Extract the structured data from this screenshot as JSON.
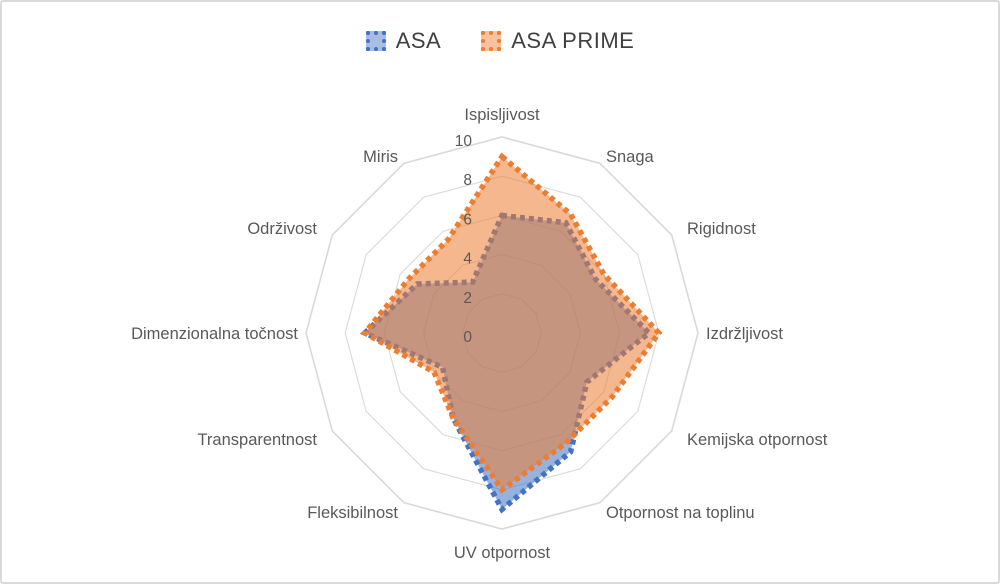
{
  "chart_data": {
    "type": "radar",
    "title": "",
    "categories": [
      "Ispisljivost",
      "Snaga",
      "Rigidnost",
      "Izdržljivost",
      "Kemijska otpornost",
      "Otpornost na toplinu",
      "UV otpornost",
      "Fleksibilnost",
      "Transparentnost",
      "Dimenzionalna točnost",
      "Održivost",
      "Miris"
    ],
    "series": [
      {
        "name": "ASA",
        "color": "#4472C4",
        "values": [
          6,
          6.5,
          5.5,
          7.5,
          5,
          7,
          9,
          5,
          3.5,
          7,
          5,
          3
        ]
      },
      {
        "name": "ASA PRIME",
        "color": "#ED7D31",
        "values": [
          9,
          7,
          6,
          8,
          6.5,
          6.5,
          8,
          5,
          4,
          7,
          5.5,
          5.5
        ]
      }
    ],
    "axis": {
      "min": 0,
      "max": 10,
      "tick_interval": 2,
      "ticks": [
        0,
        2,
        4,
        6,
        8,
        10
      ]
    },
    "grid": {
      "rings": [
        2,
        4,
        6,
        8,
        10
      ],
      "color": "#D9D9D9",
      "spokes": false
    },
    "legend": {
      "position": "top"
    }
  },
  "colors": {
    "background": "#FFFFFF",
    "frame_border": "#D9D9D9",
    "category_text": "#595959",
    "tick_text": "#595959",
    "legend_text": "#404040"
  }
}
